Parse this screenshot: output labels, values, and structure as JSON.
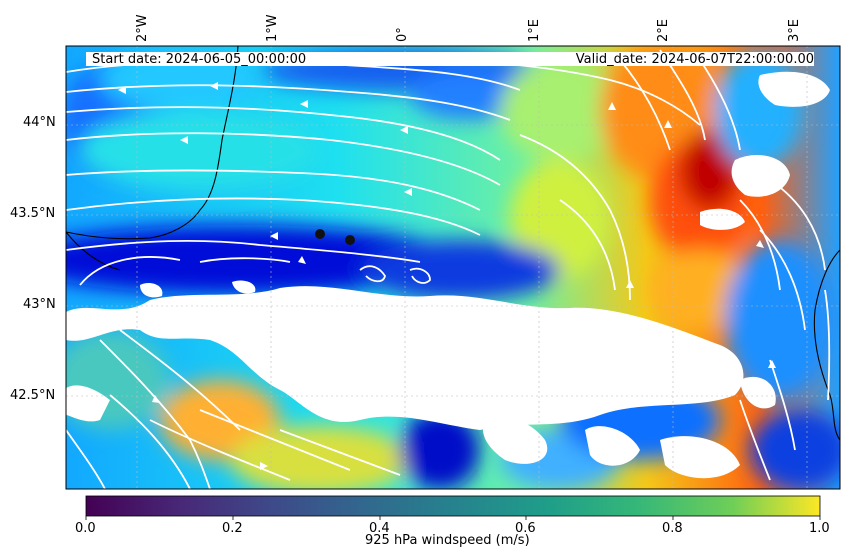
{
  "header": {
    "start_date": "Start date: 2024-06-05_00:00:00",
    "valid_date": "Valid_date: 2024-06-07T22:00:00.00"
  },
  "map": {
    "lon_labels": [
      "2°W",
      "1°W",
      "0°",
      "1°E",
      "2°E",
      "3°E"
    ],
    "lat_labels": [
      "44°N",
      "43.5°N",
      "43°N",
      "42.5°N"
    ],
    "markers": [
      {
        "lon": -0.65,
        "lat": 43.39
      },
      {
        "lon": -0.42,
        "lat": 43.36
      }
    ]
  },
  "colorbar": {
    "label": "925 hPa windspeed (m/s)",
    "colormap": "viridis",
    "ticks": [
      "0.0",
      "0.2",
      "0.4",
      "0.6",
      "0.8",
      "1.0"
    ]
  },
  "colors": {
    "field_low": "#0000c8",
    "field_mid": "#00d8e8",
    "field_high": "#8b0000",
    "streamline": "#ffffff"
  }
}
